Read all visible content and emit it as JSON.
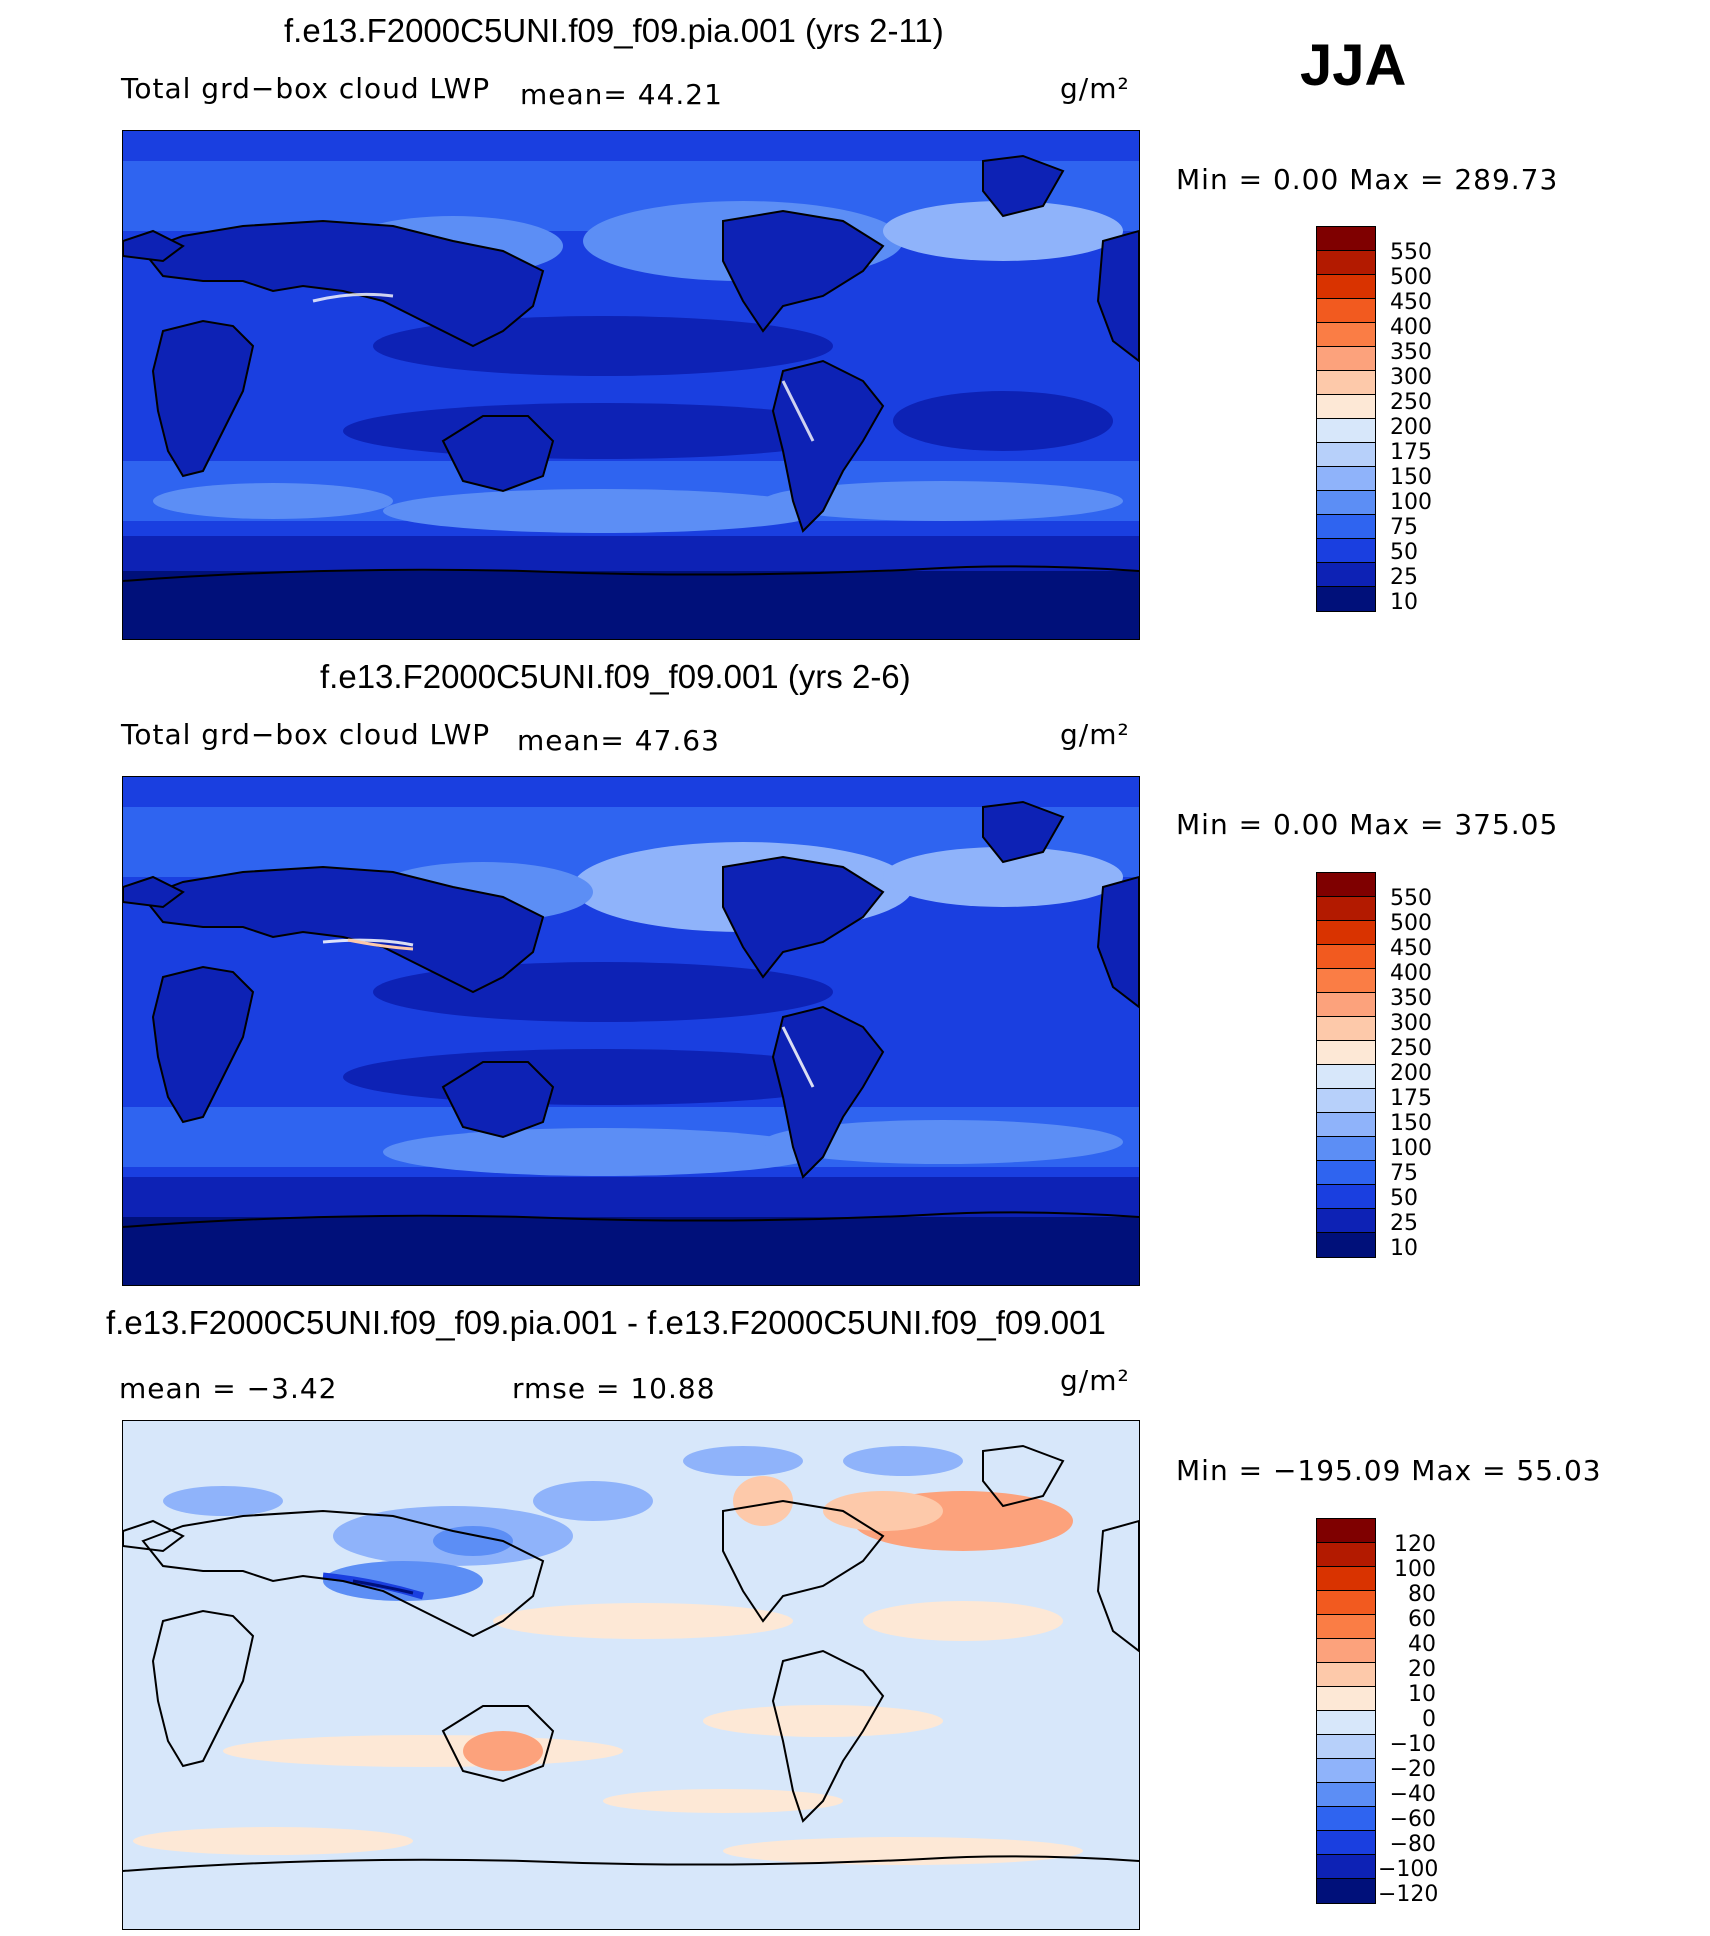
{
  "season": "JJA",
  "panels": [
    {
      "title": "f.e13.F2000C5UNI.f09_f09.pia.001 (yrs 2-11)",
      "left_label": "Total grd−box cloud LWP",
      "stat": "mean=   44.21",
      "units": "g/m²",
      "minmax": "Min  =     0.00  Max  =  289.73"
    },
    {
      "title": "f.e13.F2000C5UNI.f09_f09.001 (yrs 2-6)",
      "left_label": "Total grd−box cloud LWP",
      "stat": "mean=   47.63",
      "units": "g/m²",
      "minmax": "Min  =     0.00  Max  =  375.05"
    },
    {
      "title": "f.e13.F2000C5UNI.f09_f09.pia.001 - f.e13.F2000C5UNI.f09_f09.001",
      "left_label": "mean  =   −3.42",
      "stat": "rmse  =   10.88",
      "units": "g/m²",
      "minmax": "Min  =  −195.09  Max  =    55.03"
    }
  ],
  "colorbar_abs": {
    "labels": [
      "550",
      "500",
      "450",
      "400",
      "350",
      "300",
      "250",
      "200",
      "175",
      "150",
      "100",
      "75",
      "50",
      "25",
      "10"
    ],
    "colors": [
      "#7f0000",
      "#b31a00",
      "#d93300",
      "#f25a1f",
      "#fa7d45",
      "#fca27c",
      "#fdc9aa",
      "#fde8d6",
      "#d7e7fa",
      "#b7d0fa",
      "#8fb3fa",
      "#5c8ef5",
      "#2f64f0",
      "#1a3fe0",
      "#0d22b5",
      "#00107a"
    ]
  },
  "colorbar_diff": {
    "labels": [
      "120",
      "100",
      "80",
      "60",
      "40",
      "20",
      "10",
      "0",
      "−10",
      "−20",
      "−40",
      "−60",
      "−80",
      "−100",
      "−120"
    ],
    "colors": [
      "#7f0000",
      "#b31a00",
      "#d93300",
      "#f25a1f",
      "#fa7d45",
      "#fca27c",
      "#fdc9aa",
      "#fde8d6",
      "#d7e7fa",
      "#b7d0fa",
      "#8fb3fa",
      "#5c8ef5",
      "#2f64f0",
      "#1a3fe0",
      "#0d22b5",
      "#00107a"
    ]
  }
}
